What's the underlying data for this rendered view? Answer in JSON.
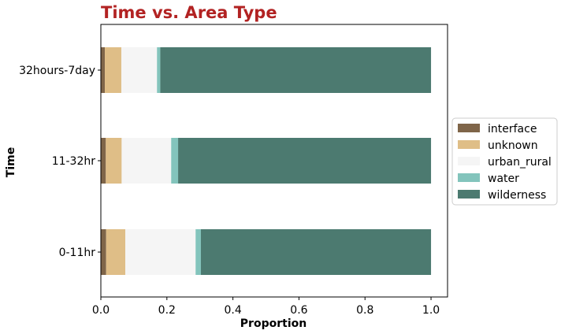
{
  "chart_data": {
    "type": "bar",
    "orientation": "horizontal",
    "stacked": true,
    "title": "Time vs. Area Type",
    "title_color": "#b22222",
    "xlabel": "Proportion",
    "ylabel": "Time",
    "xlim": [
      0,
      1.05
    ],
    "xticks": [
      "0.0",
      "0.2",
      "0.4",
      "0.6",
      "0.8",
      "1.0"
    ],
    "categories": [
      "0-11hr",
      "11-32hr",
      "32hours-7day"
    ],
    "series": [
      {
        "name": "interface",
        "color": "#7f6549",
        "values": [
          0.016,
          0.015,
          0.012
        ]
      },
      {
        "name": "unknown",
        "color": "#dfbe87",
        "values": [
          0.058,
          0.048,
          0.05
        ]
      },
      {
        "name": "urban_rural",
        "color": "#f5f5f5",
        "values": [
          0.213,
          0.15,
          0.108
        ]
      },
      {
        "name": "water",
        "color": "#83c4bc",
        "values": [
          0.016,
          0.021,
          0.01
        ]
      },
      {
        "name": "wilderness",
        "color": "#4c7a70",
        "values": [
          0.697,
          0.766,
          0.82
        ]
      }
    ],
    "legend_position": "right",
    "grid": false
  }
}
